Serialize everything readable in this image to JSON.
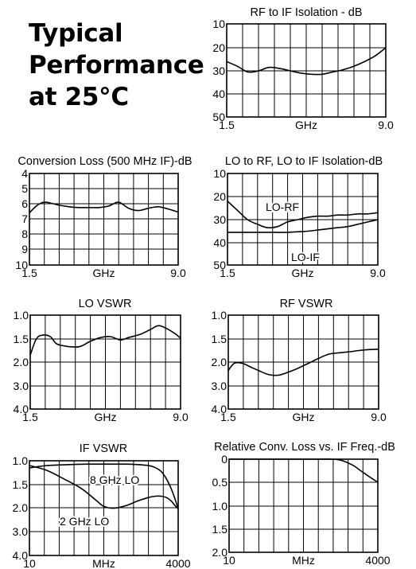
{
  "headline": {
    "line1": "Typical",
    "line2": "Performance",
    "line3": "at 25°C"
  },
  "colors": {
    "grid": "#000000",
    "curve": "#000000",
    "background": "#ffffff"
  },
  "chart_data": [
    {
      "type": "line",
      "title": "RF to IF Isolation - dB",
      "xlabel": "GHz",
      "x_tick_labels": [
        "1.5",
        "9.0"
      ],
      "y_tick_labels": [
        "10",
        "20",
        "30",
        "40",
        "50"
      ],
      "xlim": [
        1.5,
        9.0
      ],
      "ylim": [
        10,
        50
      ],
      "y_inverted": true,
      "grid": true,
      "series": [
        {
          "x": [
            1.5,
            2.0,
            2.5,
            3.0,
            3.5,
            4.0,
            4.5,
            5.0,
            5.5,
            6.0,
            6.5,
            7.0,
            7.5,
            8.0,
            8.5,
            9.0
          ],
          "y": [
            26,
            28,
            30.5,
            30,
            28.5,
            29,
            30,
            31,
            31.5,
            31.5,
            30.5,
            29.5,
            28,
            26,
            23.5,
            20
          ]
        }
      ]
    },
    {
      "type": "line",
      "title": "Conversion Loss (500 MHz IF)-dB",
      "xlabel": "GHz",
      "x_tick_labels": [
        "1.5",
        "9.0"
      ],
      "y_tick_labels": [
        "4",
        "5",
        "6",
        "7",
        "8",
        "9",
        "10"
      ],
      "xlim": [
        1.5,
        9.0
      ],
      "ylim": [
        4,
        10
      ],
      "y_inverted": true,
      "grid": true,
      "series": [
        {
          "x": [
            1.5,
            1.9,
            2.3,
            3.0,
            3.5,
            4.0,
            4.5,
            5.0,
            5.5,
            6.0,
            6.5,
            7.0,
            7.5,
            8.0,
            8.5,
            9.0
          ],
          "y": [
            6.6,
            6.1,
            5.9,
            6.1,
            6.2,
            6.25,
            6.25,
            6.25,
            6.15,
            5.9,
            6.3,
            6.45,
            6.3,
            6.2,
            6.35,
            6.55
          ]
        }
      ]
    },
    {
      "type": "line",
      "title": "LO to RF, LO to IF Isolation-dB",
      "xlabel": "GHz",
      "x_tick_labels": [
        "1.5",
        "9.0"
      ],
      "y_tick_labels": [
        "10",
        "20",
        "30",
        "40",
        "50"
      ],
      "xlim": [
        1.5,
        9.0
      ],
      "ylim": [
        10,
        50
      ],
      "y_inverted": true,
      "grid": true,
      "series": [
        {
          "name": "LO-RF",
          "x": [
            1.5,
            2.0,
            2.5,
            3.0,
            3.5,
            4.0,
            4.5,
            5.0,
            5.5,
            6.0,
            6.5,
            7.0,
            7.5,
            8.0,
            8.5,
            9.0
          ],
          "y": [
            22,
            26,
            30,
            32,
            33.5,
            33,
            31,
            30,
            29,
            28.5,
            28.5,
            28,
            28,
            27.5,
            27.5,
            27
          ]
        },
        {
          "name": "LO-IF",
          "x": [
            1.5,
            2.5,
            3.5,
            4.5,
            5.5,
            6.0,
            6.5,
            7.0,
            7.5,
            8.0,
            8.5,
            9.0
          ],
          "y": [
            35.5,
            35.5,
            35.5,
            35.5,
            35,
            34.5,
            34,
            33.5,
            33,
            32,
            31,
            30
          ]
        }
      ]
    },
    {
      "type": "line",
      "title": "LO VSWR",
      "xlabel": "GHz",
      "x_tick_labels": [
        "1.5",
        "9.0"
      ],
      "y_tick_labels": [
        "1.0",
        "1.5",
        "2.0",
        "3.0",
        "4.0"
      ],
      "xlim": [
        1.5,
        9.0
      ],
      "ylim": [
        1.0,
        4.0
      ],
      "y_inverted": true,
      "grid": true,
      "series": [
        {
          "x": [
            1.5,
            1.8,
            2.1,
            2.5,
            2.8,
            3.2,
            3.6,
            4.0,
            4.5,
            5.0,
            5.5,
            6.0,
            6.4,
            7.0,
            7.5,
            7.9,
            8.3,
            8.7,
            9.0
          ],
          "y": [
            1.85,
            1.5,
            1.42,
            1.45,
            1.6,
            1.65,
            1.67,
            1.66,
            1.55,
            1.47,
            1.45,
            1.52,
            1.47,
            1.4,
            1.3,
            1.22,
            1.28,
            1.38,
            1.48
          ]
        }
      ]
    },
    {
      "type": "line",
      "title": "RF VSWR",
      "xlabel": "GHz",
      "x_tick_labels": [
        "1.5",
        "9.0"
      ],
      "y_tick_labels": [
        "1.0",
        "1.5",
        "2.0",
        "3.0",
        "4.0"
      ],
      "xlim": [
        1.5,
        9.0
      ],
      "ylim": [
        1.0,
        4.0
      ],
      "y_inverted": true,
      "grid": true,
      "series": [
        {
          "x": [
            1.5,
            1.8,
            2.2,
            2.6,
            3.0,
            3.5,
            4.0,
            4.5,
            5.0,
            5.5,
            6.0,
            6.5,
            7.0,
            7.5,
            8.0,
            8.5,
            9.0
          ],
          "y": [
            2.35,
            2.05,
            2.05,
            2.2,
            2.35,
            2.52,
            2.55,
            2.42,
            2.25,
            2.05,
            1.92,
            1.83,
            1.8,
            1.78,
            1.75,
            1.73,
            1.72
          ]
        }
      ]
    },
    {
      "type": "line",
      "title": "IF VSWR",
      "xlabel": "MHz",
      "x_tick_labels": [
        "10",
        "4000"
      ],
      "y_tick_labels": [
        "1.0",
        "1.5",
        "2.0",
        "3.0",
        "4.0"
      ],
      "xlim": [
        10,
        4000
      ],
      "x_scale": "log",
      "ylim": [
        1.0,
        4.0
      ],
      "y_inverted": true,
      "grid": true,
      "series": [
        {
          "name": "8 GHz LO",
          "x": [
            10,
            20,
            50,
            100,
            200,
            500,
            800,
            1200,
            1500,
            2000,
            2500,
            3000,
            3500,
            4000
          ],
          "y": [
            1.15,
            1.1,
            1.08,
            1.07,
            1.07,
            1.07,
            1.08,
            1.1,
            1.13,
            1.22,
            1.38,
            1.58,
            1.8,
            2.05
          ]
        },
        {
          "name": "2 GHz LO",
          "x": [
            10,
            20,
            40,
            80,
            150,
            200,
            300,
            500,
            800,
            1200,
            1600,
            2000,
            2500,
            3000,
            3500,
            4000
          ],
          "y": [
            1.1,
            1.2,
            1.38,
            1.58,
            1.85,
            1.97,
            2.02,
            1.95,
            1.85,
            1.78,
            1.75,
            1.75,
            1.78,
            1.85,
            1.95,
            2.05
          ]
        }
      ]
    },
    {
      "type": "line",
      "title": "Relative Conv. Loss vs. IF Freq.-dB",
      "xlabel": "MHz",
      "x_tick_labels": [
        "10",
        "4000"
      ],
      "y_tick_labels": [
        "0",
        "0.5",
        "1.0",
        "1.5",
        "2.0"
      ],
      "xlim": [
        10,
        4000
      ],
      "x_scale": "log",
      "ylim": [
        0,
        2.0
      ],
      "y_inverted": true,
      "grid": true,
      "series": [
        {
          "x": [
            10,
            50,
            100,
            200,
            400,
            600,
            800,
            1000,
            1500,
            2000,
            3000,
            4000
          ],
          "y": [
            0,
            0,
            0,
            0,
            0,
            0,
            0.01,
            0.04,
            0.14,
            0.25,
            0.4,
            0.5
          ]
        }
      ]
    }
  ]
}
